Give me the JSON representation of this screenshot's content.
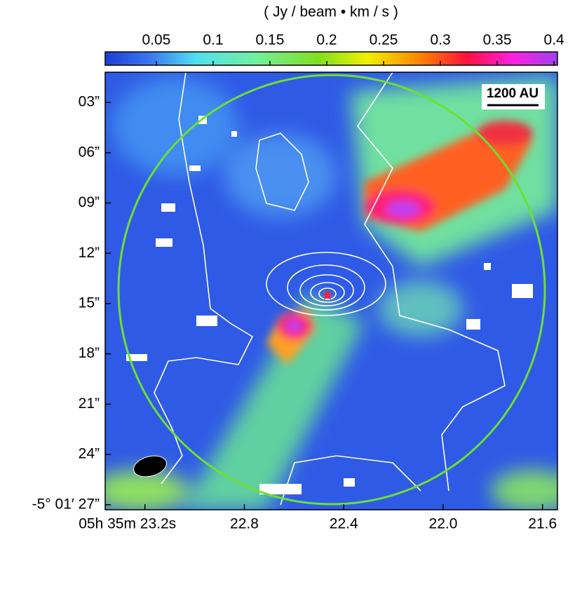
{
  "chart_data": {
    "type": "image",
    "colorbar_label": "( Jy / beam • km / s )",
    "clim": [
      0.005,
      0.403
    ],
    "cticks": [
      0.05,
      0.1,
      0.15,
      0.2,
      0.25,
      0.3,
      0.35,
      0.4
    ],
    "xlim": [
      23.36,
      21.54
    ],
    "xticks": [
      {
        "value": 23.2,
        "label": "05h 35m 23.2s"
      },
      {
        "value": 22.8,
        "label": "22.8"
      },
      {
        "value": 22.4,
        "label": "22.4"
      },
      {
        "value": 22.0,
        "label": "22.0"
      },
      {
        "value": 21.6,
        "label": "21.6"
      }
    ],
    "ylim": [
      1.2,
      27.3
    ],
    "yticks": [
      {
        "value": 3,
        "label": "03”"
      },
      {
        "value": 6,
        "label": "06”"
      },
      {
        "value": 9,
        "label": "09”"
      },
      {
        "value": 12,
        "label": "12”"
      },
      {
        "value": 15,
        "label": "15”"
      },
      {
        "value": 18,
        "label": "18”"
      },
      {
        "value": 21,
        "label": "21”"
      },
      {
        "value": 24,
        "label": "24”"
      },
      {
        "value": 27,
        "label": "-5° 01′ 27”"
      }
    ],
    "scale_bar": "1200 AU"
  }
}
